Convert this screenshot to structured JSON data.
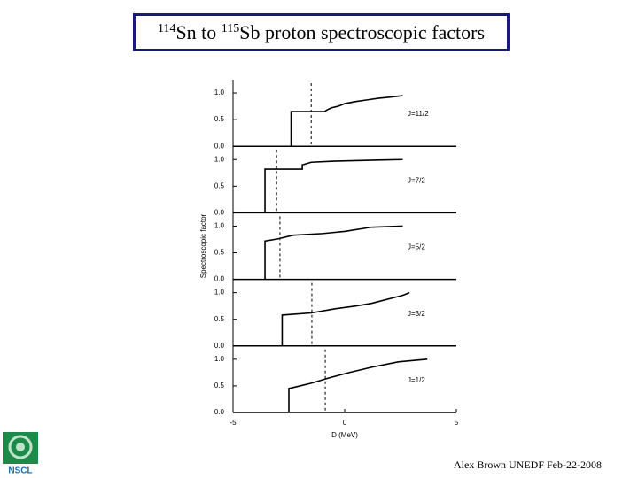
{
  "header": {
    "mass1": "114",
    "text1": "Sn to ",
    "mass2": "115",
    "text2": "Sb proton spectroscopic factors"
  },
  "footer": "Alex Brown UNEDF Feb-22-2008",
  "logo": "NSCL",
  "chart_data": {
    "type": "line",
    "color": "#000000",
    "xlabel": "D (MeV)",
    "ylabel": "Spectroscopic factor",
    "xlim": [
      -5,
      5
    ],
    "xticks": [
      -5,
      0,
      5
    ],
    "ylim": [
      0,
      1.25
    ],
    "yticks": [
      {
        "value": 0,
        "label": "0.0"
      },
      {
        "value": 0.5,
        "label": "0.5"
      },
      {
        "value": 1,
        "label": "1.0"
      }
    ],
    "panels": [
      {
        "label": "J=11/2",
        "centroid": -1.5,
        "x": [
          -2.4,
          -2.4,
          -0.9,
          -0.8,
          -0.6,
          -0.3,
          0,
          0.5,
          1,
          1.5,
          2,
          2.6
        ],
        "y": [
          0,
          0.65,
          0.65,
          0.68,
          0.72,
          0.75,
          0.8,
          0.84,
          0.87,
          0.9,
          0.92,
          0.95
        ]
      },
      {
        "label": "J=7/2",
        "centroid": -3.05,
        "x": [
          -3.57,
          -3.57,
          -1.9,
          -1.9,
          -1.5,
          -0.5,
          0.5,
          1.5,
          2.6
        ],
        "y": [
          0,
          0.82,
          0.82,
          0.9,
          0.95,
          0.97,
          0.98,
          0.99,
          1.0
        ]
      },
      {
        "label": "J=5/2",
        "centroid": -2.9,
        "x": [
          -3.57,
          -3.57,
          -3.0,
          -2.3,
          -1.0,
          0,
          1.2,
          2.6
        ],
        "y": [
          0,
          0.72,
          0.76,
          0.83,
          0.86,
          0.9,
          0.98,
          1.0
        ]
      },
      {
        "label": "J=3/2",
        "centroid": -1.47,
        "x": [
          -2.8,
          -2.8,
          -1.5,
          -0.4,
          0.5,
          1.2,
          2.6,
          2.9
        ],
        "y": [
          0,
          0.58,
          0.62,
          0.7,
          0.75,
          0.8,
          0.95,
          1.0
        ]
      },
      {
        "label": "J=1/2",
        "centroid": -0.87,
        "x": [
          -2.5,
          -2.5,
          -1.5,
          -0.7,
          0.2,
          1.2,
          2.4,
          3.7
        ],
        "y": [
          0,
          0.45,
          0.55,
          0.65,
          0.75,
          0.85,
          0.95,
          1.0
        ]
      }
    ]
  }
}
